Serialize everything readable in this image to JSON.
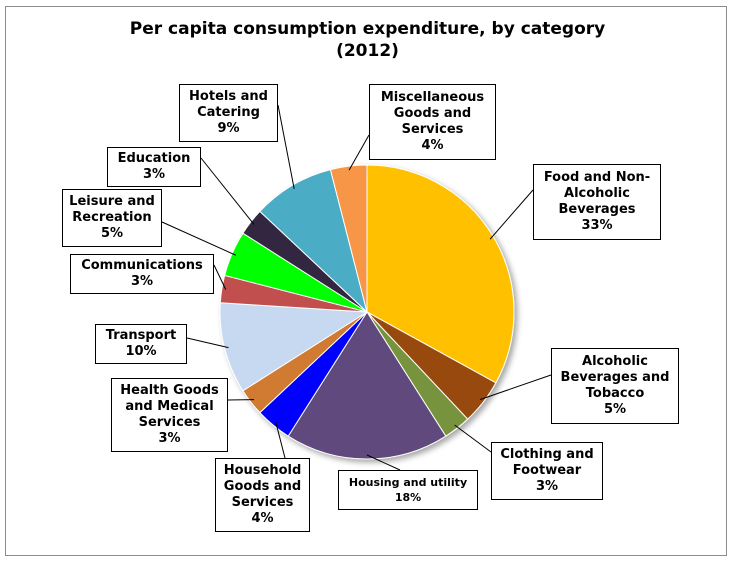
{
  "chart_data": {
    "type": "pie",
    "title": "Per capita consumption expenditure, by category",
    "subtitle": "(2012)",
    "slices": [
      {
        "label": "Food and Non-\nAlcoholic\nBeverages",
        "value": 33,
        "value_label": "33%",
        "color": "#FFC000"
      },
      {
        "label": "Alcoholic\nBeverages and\nTobacco",
        "value": 5,
        "value_label": "5%",
        "color": "#984807"
      },
      {
        "label": "Clothing and\nFootwear",
        "value": 3,
        "value_label": "3%",
        "color": "#77933C"
      },
      {
        "label": "Housing and utility",
        "value": 18,
        "value_label": "18%",
        "color": "#604A7B"
      },
      {
        "label": "Household\nGoods and\nServices",
        "value": 4,
        "value_label": "4%",
        "color": "#0000FF"
      },
      {
        "label": "Health Goods\nand Medical\nServices",
        "value": 3,
        "value_label": "3%",
        "color": "#D07A32"
      },
      {
        "label": "Transport",
        "value": 10,
        "value_label": "10%",
        "color": "#C6D9F1"
      },
      {
        "label": "Communications",
        "value": 3,
        "value_label": "3%",
        "color": "#C0504D"
      },
      {
        "label": "Leisure and\nRecreation",
        "value": 5,
        "value_label": "5%",
        "color": "#00FF00"
      },
      {
        "label": "Education",
        "value": 3,
        "value_label": "3%",
        "color": "#31283F"
      },
      {
        "label": "Hotels and\nCatering",
        "value": 9,
        "value_label": "9%",
        "color": "#4BACC6"
      },
      {
        "label": "Miscellaneous\nGoods and\nServices",
        "value": 4,
        "value_label": "4%",
        "color": "#F79646"
      }
    ]
  }
}
